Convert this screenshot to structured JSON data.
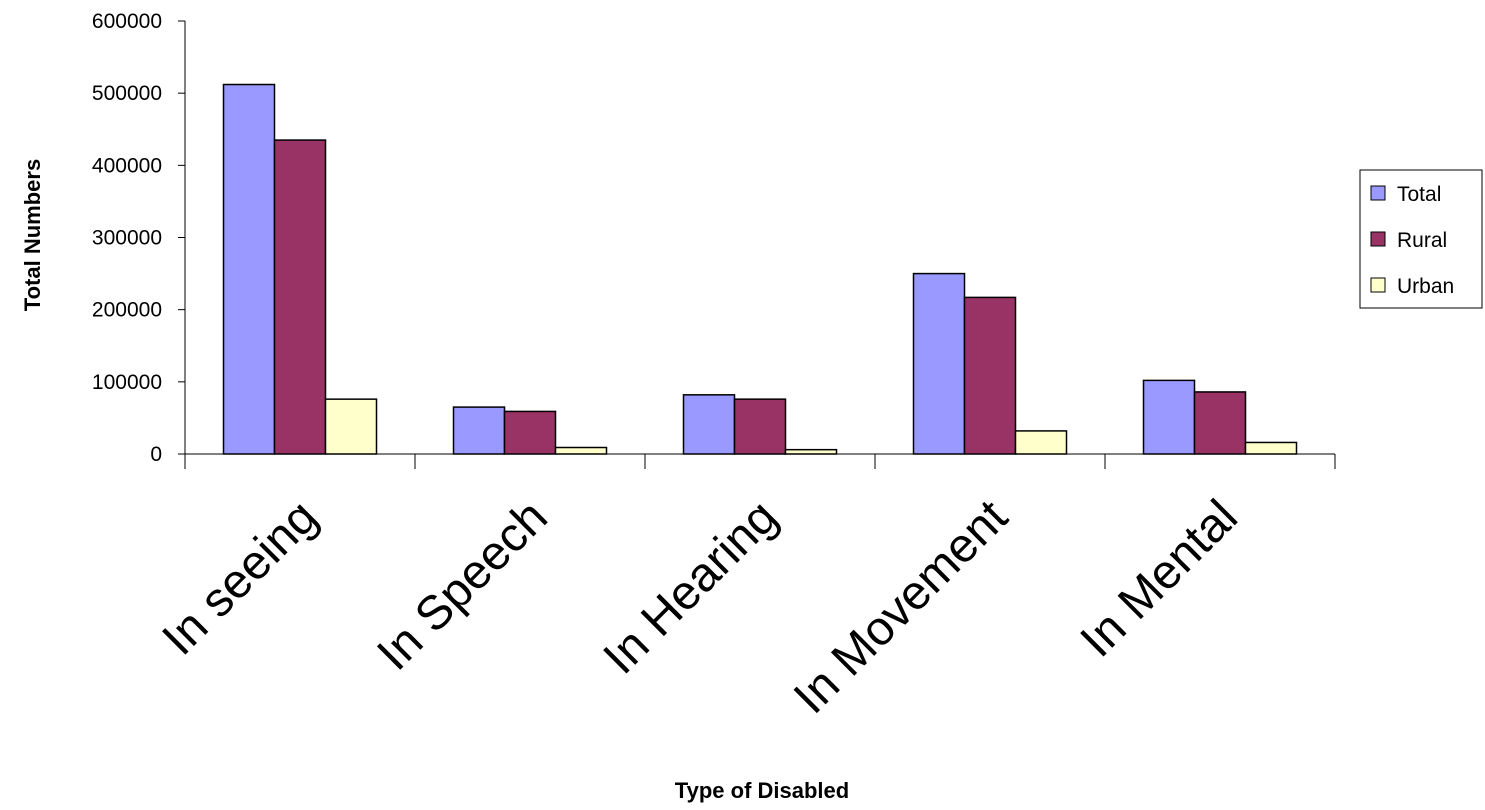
{
  "chart_data": {
    "type": "bar",
    "title": "",
    "xlabel": "Type of Disabled",
    "ylabel": "Total Numbers",
    "categories": [
      "In seeing",
      "In Speech",
      "In Hearing",
      "In Movement",
      "In Mental"
    ],
    "ylim": [
      0,
      600000
    ],
    "yticks": [
      "0",
      "100000",
      "200000",
      "300000",
      "400000",
      "500000",
      "600000"
    ],
    "ytick_values": [
      0,
      100000,
      200000,
      300000,
      400000,
      500000,
      600000
    ],
    "grid": false,
    "legend_position": "right",
    "series": [
      {
        "name": "Total",
        "color": "#9999ff",
        "values": [
          512000,
          65000,
          82000,
          250000,
          102000
        ]
      },
      {
        "name": "Rural",
        "color": "#993366",
        "values": [
          435000,
          59000,
          76000,
          217000,
          86000
        ]
      },
      {
        "name": "Urban",
        "color": "#ffffcc",
        "values": [
          76000,
          9000,
          6000,
          32000,
          16000
        ]
      }
    ]
  }
}
